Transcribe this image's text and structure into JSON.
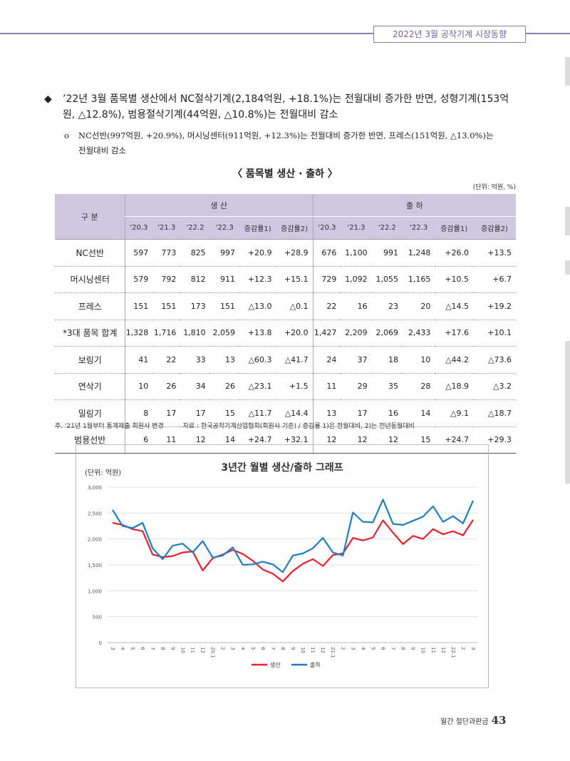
{
  "header": {
    "title": "2022년 3월 공작기계 시장동향"
  },
  "bullet": {
    "line1": "’22년 3월 품목별 생산에서 NC절삭기계(2,184억원, +18.1%)는 전월대비 증가한 반면, 성형기계(153억",
    "line2": "원, △12.8%), 범용절삭기계(44억원, △10.8%)는 전월대비 감소"
  },
  "sub_bullet": {
    "line1": "NC선반(997억원, +20.9%), 머시닝센터(911억원, +12.3%)는 전월대비 증가한 반면, 프레스(151억원, △13.0%)는",
    "line2": "전월대비 감소"
  },
  "table": {
    "title": "〈 품목별 생산 · 출하 〉",
    "unit": "(단위: 억원, %)",
    "col_group_label": "구 분",
    "group_production": "생 산",
    "group_shipment": "출 하",
    "sub_headers": [
      "'20.3",
      "'21.3",
      "'22.2",
      "'22.3",
      "증감률1)",
      "증감률2)",
      "'20.3",
      "'21.3",
      "'22.2",
      "'22.3",
      "증감률1)",
      "증감률2)"
    ],
    "rows": [
      {
        "label": "NC선반",
        "cells": [
          "597",
          "773",
          "825",
          "997",
          "+20.9",
          "+28.9",
          "676",
          "1,100",
          "991",
          "1,248",
          "+26.0",
          "+13.5"
        ]
      },
      {
        "label": "머시닝센터",
        "cells": [
          "579",
          "792",
          "812",
          "911",
          "+12.3",
          "+15.1",
          "729",
          "1,092",
          "1,055",
          "1,165",
          "+10.5",
          "+6.7"
        ]
      },
      {
        "label": "프레스",
        "cells": [
          "151",
          "151",
          "173",
          "151",
          "△13.0",
          "△0.1",
          "22",
          "16",
          "23",
          "20",
          "△14.5",
          "+19.2"
        ]
      },
      {
        "label": "*3대 품목 합계",
        "cells": [
          "1,328",
          "1,716",
          "1,810",
          "2,059",
          "+13.8",
          "+20.0",
          "1,427",
          "2,209",
          "2,069",
          "2,433",
          "+17.6",
          "+10.1"
        ]
      },
      {
        "label": "보링기",
        "cells": [
          "41",
          "22",
          "33",
          "13",
          "△60.3",
          "△41.7",
          "24",
          "37",
          "18",
          "10",
          "△44.2",
          "△73.6"
        ]
      },
      {
        "label": "연삭기",
        "cells": [
          "10",
          "26",
          "34",
          "26",
          "△23.1",
          "+1.5",
          "11",
          "29",
          "35",
          "28",
          "△18.9",
          "△3.2"
        ]
      },
      {
        "label": "밀링기",
        "cells": [
          "8",
          "17",
          "17",
          "15",
          "△11.7",
          "△14.4",
          "13",
          "17",
          "16",
          "14",
          "△9.1",
          "△18.7"
        ]
      },
      {
        "label": "범용선반",
        "cells": [
          "6",
          "11",
          "12",
          "14",
          "+24.7",
          "+32.1",
          "12",
          "12",
          "12",
          "15",
          "+24.7",
          "+29.3"
        ]
      }
    ]
  },
  "footnote": {
    "note": "주. '21년 1월부터 통계제출 회원사 변경",
    "source": "자료 : 한국공작기계산업협회(회원사 기준) / 증감률 1)은 전월대비, 2)는 전년동월대비"
  },
  "chart_data": {
    "type": "line",
    "title": "3년간 월별 생산/출하 그래프",
    "ylabel": "(단위: 억원)",
    "ylim": [
      0,
      3000
    ],
    "yticks": [
      0,
      500,
      1000,
      1500,
      2000,
      2500,
      3000
    ],
    "ytick_labels": [
      "0",
      "500",
      "1,000",
      "1,500",
      "2,000",
      "2,500",
      "3,000"
    ],
    "x": [
      "3",
      "4",
      "5",
      "6",
      "7",
      "8",
      "9",
      "10",
      "11",
      "12",
      "20.1",
      "2",
      "3",
      "4",
      "5",
      "6",
      "7",
      "8",
      "9",
      "10",
      "11",
      "12",
      "21.1",
      "2",
      "3",
      "4",
      "5",
      "6",
      "7",
      "8",
      "9",
      "10",
      "11",
      "12",
      "22.1",
      "2",
      "3"
    ],
    "series": [
      {
        "name": "생산",
        "color": "#e8202a",
        "values": [
          2310,
          2270,
          2190,
          2150,
          1700,
          1650,
          1670,
          1740,
          1760,
          1390,
          1630,
          1700,
          1790,
          1710,
          1580,
          1410,
          1330,
          1180,
          1380,
          1520,
          1610,
          1480,
          1690,
          1720,
          2020,
          1970,
          2030,
          2360,
          2120,
          1900,
          2060,
          2000,
          2190,
          2090,
          2150,
          2070,
          2370
        ]
      },
      {
        "name": "출하",
        "color": "#1f7ec2",
        "values": [
          2560,
          2250,
          2210,
          2310,
          1820,
          1610,
          1870,
          1910,
          1740,
          1960,
          1640,
          1680,
          1840,
          1500,
          1510,
          1560,
          1510,
          1360,
          1680,
          1720,
          1820,
          2020,
          1740,
          1680,
          2510,
          2330,
          2320,
          2760,
          2290,
          2270,
          2350,
          2430,
          2630,
          2330,
          2440,
          2300,
          2740
        ]
      }
    ],
    "grid": true,
    "legend": "bottom"
  },
  "footer": {
    "magazine": "월간 절단과판금",
    "page": "43"
  }
}
